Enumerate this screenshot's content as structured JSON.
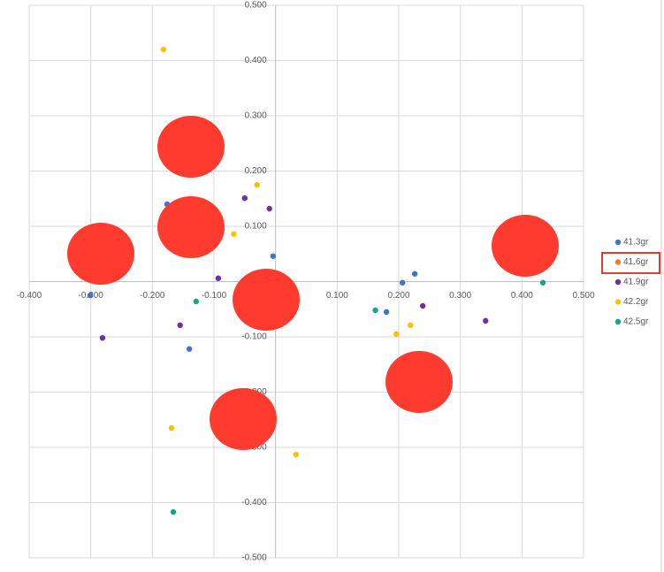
{
  "chart_data": {
    "type": "scatter",
    "xlim": [
      -0.4,
      0.5
    ],
    "ylim": [
      -0.5,
      0.5
    ],
    "xticks": [
      {
        "value": -0.4,
        "label": "-0.400"
      },
      {
        "value": -0.3,
        "label": "-0.300"
      },
      {
        "value": -0.2,
        "label": "-0.200"
      },
      {
        "value": -0.1,
        "label": "-0.100"
      },
      {
        "value": 0.1,
        "label": "0.100"
      },
      {
        "value": 0.2,
        "label": "0.200"
      },
      {
        "value": 0.3,
        "label": "0.300"
      },
      {
        "value": 0.4,
        "label": "0.400"
      },
      {
        "value": 0.5,
        "label": "0.500"
      }
    ],
    "yticks": [
      {
        "value": 0.5,
        "label": "0.500"
      },
      {
        "value": 0.4,
        "label": "0.400"
      },
      {
        "value": 0.3,
        "label": "0.300"
      },
      {
        "value": 0.2,
        "label": "0.200"
      },
      {
        "value": 0.1,
        "label": "0.100"
      },
      {
        "value": -0.1,
        "label": "-0.100"
      },
      {
        "value": -0.2,
        "label": "-0.200"
      },
      {
        "value": -0.3,
        "label": "-0.300"
      },
      {
        "value": -0.4,
        "label": "-0.400"
      },
      {
        "value": -0.5,
        "label": "-0.500"
      }
    ],
    "grid": true,
    "series": [
      {
        "name": "41.3gr",
        "color": "#4472c4",
        "x": [
          -0.176,
          -0.004,
          -0.301,
          -0.14,
          0.206,
          0.226,
          0.18
        ],
        "y": [
          0.14,
          0.046,
          -0.025,
          -0.122,
          -0.002,
          0.014,
          -0.055
        ]
      },
      {
        "name": "41.6gr",
        "color": "#ed7d31",
        "x": [],
        "y": []
      },
      {
        "name": "41.9gr",
        "color": "#7030a0",
        "x": [
          -0.05,
          -0.01,
          -0.093,
          -0.155,
          -0.281,
          0.239,
          0.341
        ],
        "y": [
          0.151,
          0.132,
          0.006,
          -0.079,
          -0.102,
          -0.044,
          -0.071
        ]
      },
      {
        "name": "42.2gr",
        "color": "#ffc000",
        "x": [
          -0.182,
          -0.03,
          -0.068,
          0.196,
          0.219,
          -0.169,
          0.033
        ],
        "y": [
          0.42,
          0.175,
          0.086,
          -0.095,
          -0.079,
          -0.265,
          -0.313
        ]
      },
      {
        "name": "42.5gr",
        "color": "#1ba38a",
        "x": [
          -0.129,
          0.162,
          0.434,
          -0.166
        ],
        "y": [
          -0.036,
          -0.052,
          -0.002,
          -0.417
        ]
      }
    ]
  }
}
